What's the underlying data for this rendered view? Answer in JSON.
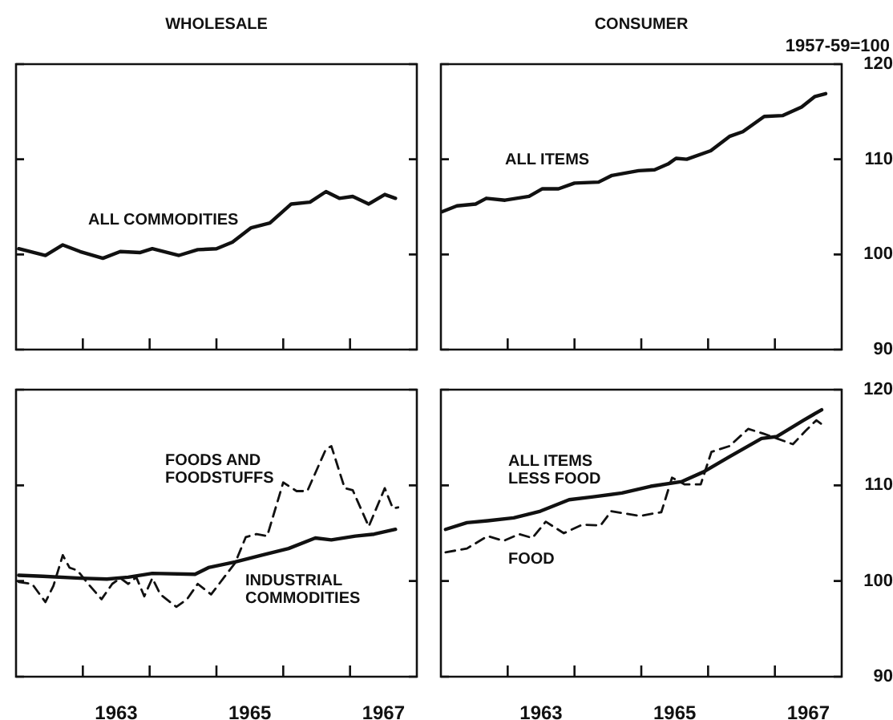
{
  "chart_data": [
    {
      "type": "line",
      "title": "WHOLESALE",
      "xlim": [
        1962,
        1968
      ],
      "xticks": [
        {
          "value": 1963,
          "label": null
        },
        {
          "value": 1964,
          "label": null
        },
        {
          "value": 1965,
          "label": null
        },
        {
          "value": 1966,
          "label": null
        },
        {
          "value": 1967,
          "label": null
        }
      ],
      "ylim": [
        90,
        120
      ],
      "yticks": [
        90,
        100,
        110,
        120
      ],
      "tick_labels": false,
      "marker": "none",
      "series": [
        {
          "name": "ALL COMMODITIES",
          "color": "#111111",
          "line_style": "solid",
          "x": [
            1962.04,
            1962.44,
            1962.7,
            1962.96,
            1963.3,
            1963.56,
            1963.86,
            1964.04,
            1964.44,
            1964.72,
            1965.0,
            1965.24,
            1965.52,
            1965.8,
            1966.12,
            1966.4,
            1966.64,
            1966.84,
            1967.04,
            1967.28,
            1967.52,
            1967.68
          ],
          "values": [
            100.6,
            99.9,
            101,
            100.3,
            99.6,
            100.3,
            100.2,
            100.6,
            99.9,
            100.5,
            100.6,
            101.3,
            102.8,
            103.3,
            105.3,
            105.5,
            106.6,
            105.9,
            106.1,
            105.3,
            106.3,
            105.9
          ]
        }
      ]
    },
    {
      "type": "line",
      "title": "CONSUMER",
      "ylabel": "1957-59=100",
      "xlim": [
        1962,
        1968
      ],
      "xticks": [
        {
          "value": 1963,
          "label": null
        },
        {
          "value": 1964,
          "label": null
        },
        {
          "value": 1965,
          "label": null
        },
        {
          "value": 1966,
          "label": null
        },
        {
          "value": 1967,
          "label": null
        }
      ],
      "ylim": [
        90,
        120
      ],
      "yticks": [
        90,
        100,
        110,
        120
      ],
      "tick_labels": "y",
      "marker": "none",
      "series": [
        {
          "name": "ALL ITEMS",
          "color": "#111111",
          "line_style": "solid",
          "x": [
            1962.02,
            1962.24,
            1962.52,
            1962.68,
            1962.96,
            1963.32,
            1963.52,
            1963.76,
            1964.0,
            1964.36,
            1964.56,
            1964.96,
            1965.2,
            1965.4,
            1965.52,
            1965.68,
            1966.04,
            1966.32,
            1966.52,
            1966.84,
            1967.12,
            1967.4,
            1967.6,
            1967.76
          ],
          "values": [
            104.5,
            105.1,
            105.3,
            105.9,
            105.7,
            106.1,
            106.9,
            106.9,
            107.5,
            107.6,
            108.3,
            108.8,
            108.9,
            109.5,
            110.1,
            110.0,
            110.9,
            112.4,
            112.9,
            114.5,
            114.6,
            115.5,
            116.6,
            116.9
          ]
        }
      ]
    },
    {
      "type": "line",
      "xlim": [
        1962,
        1968
      ],
      "xticks": [
        {
          "value": 1963,
          "label": null
        },
        {
          "value": 1963.5,
          "label": "1963"
        },
        {
          "value": 1964,
          "label": null
        },
        {
          "value": 1965,
          "label": null
        },
        {
          "value": 1965.5,
          "label": "1965"
        },
        {
          "value": 1966,
          "label": null
        },
        {
          "value": 1967,
          "label": null
        },
        {
          "value": 1967.5,
          "label": "1967"
        }
      ],
      "ylim": [
        90,
        120
      ],
      "yticks": [
        90,
        100,
        110,
        120
      ],
      "tick_labels": "x",
      "marker": "none",
      "series": [
        {
          "name": "FOODS AND FOODSTUFFS",
          "color": "#111111",
          "line_style": "dashed",
          "x": [
            1962.04,
            1962.24,
            1962.44,
            1962.56,
            1962.7,
            1962.8,
            1962.92,
            1963.08,
            1963.28,
            1963.44,
            1963.56,
            1963.68,
            1963.8,
            1963.92,
            1964.04,
            1964.16,
            1964.4,
            1964.56,
            1964.72,
            1964.92,
            1965.28,
            1965.44,
            1965.6,
            1965.76,
            1966.0,
            1966.2,
            1966.36,
            1966.64,
            1966.72,
            1966.92,
            1967.04,
            1967.28,
            1967.52,
            1967.64,
            1967.72
          ],
          "values": [
            99.9,
            99.7,
            97.8,
            99.5,
            102.7,
            101.4,
            101.1,
            99.7,
            98.1,
            99.7,
            100.3,
            99.7,
            100.4,
            98.4,
            100.3,
            98.6,
            97.3,
            98.1,
            99.7,
            98.6,
            101.9,
            104.6,
            104.9,
            104.7,
            110.3,
            109.4,
            109.4,
            113.8,
            114.1,
            109.7,
            109.5,
            105.7,
            109.7,
            107.6,
            107.7
          ]
        },
        {
          "name": "INDUSTRIAL COMMODITIES",
          "color": "#111111",
          "line_style": "solid",
          "x": [
            1962.04,
            1962.4,
            1962.96,
            1963.36,
            1963.68,
            1964.04,
            1964.68,
            1964.88,
            1965.28,
            1965.68,
            1966.08,
            1966.48,
            1966.72,
            1967.08,
            1967.36,
            1967.68
          ],
          "values": [
            100.6,
            100.5,
            100.3,
            100.2,
            100.4,
            100.8,
            100.7,
            101.4,
            102.0,
            102.7,
            103.4,
            104.5,
            104.3,
            104.7,
            104.9,
            105.4
          ]
        }
      ]
    },
    {
      "type": "line",
      "xlim": [
        1962,
        1968
      ],
      "xticks": [
        {
          "value": 1963,
          "label": null
        },
        {
          "value": 1963.5,
          "label": "1963"
        },
        {
          "value": 1964,
          "label": null
        },
        {
          "value": 1965,
          "label": null
        },
        {
          "value": 1965.5,
          "label": "1965"
        },
        {
          "value": 1966,
          "label": null
        },
        {
          "value": 1967,
          "label": null
        },
        {
          "value": 1967.5,
          "label": "1967"
        }
      ],
      "ylim": [
        90,
        120
      ],
      "yticks": [
        90,
        100,
        110,
        120
      ],
      "marker": "none",
      "series": [
        {
          "name": "ALL ITEMS LESS FOOD",
          "color": "#111111",
          "line_style": "solid",
          "x": [
            1962.07,
            1962.39,
            1962.7,
            1963.09,
            1963.49,
            1963.92,
            1964.28,
            1964.71,
            1965.14,
            1965.61,
            1965.93,
            1966.32,
            1966.8,
            1967.03,
            1967.43,
            1967.7
          ],
          "values": [
            105.4,
            106.1,
            106.3,
            106.6,
            107.3,
            108.5,
            108.8,
            109.2,
            109.9,
            110.4,
            111.4,
            113.0,
            114.9,
            115.1,
            116.8,
            117.9
          ]
        },
        {
          "name": "FOOD",
          "color": "#111111",
          "line_style": "dashed",
          "x": [
            1962.07,
            1962.39,
            1962.7,
            1962.94,
            1963.17,
            1963.37,
            1963.57,
            1963.84,
            1964.12,
            1964.39,
            1964.55,
            1964.98,
            1965.3,
            1965.46,
            1965.65,
            1965.89,
            1966.05,
            1966.32,
            1966.6,
            1966.83,
            1967.03,
            1967.27,
            1967.46,
            1967.62,
            1967.74
          ],
          "values": [
            103.0,
            103.4,
            104.7,
            104.2,
            104.9,
            104.5,
            106.2,
            105.0,
            105.9,
            105.8,
            107.3,
            106.8,
            107.2,
            110.8,
            110.1,
            110.1,
            113.5,
            114.1,
            115.9,
            115.4,
            114.9,
            114.3,
            115.7,
            116.8,
            116.2
          ]
        }
      ]
    }
  ]
}
